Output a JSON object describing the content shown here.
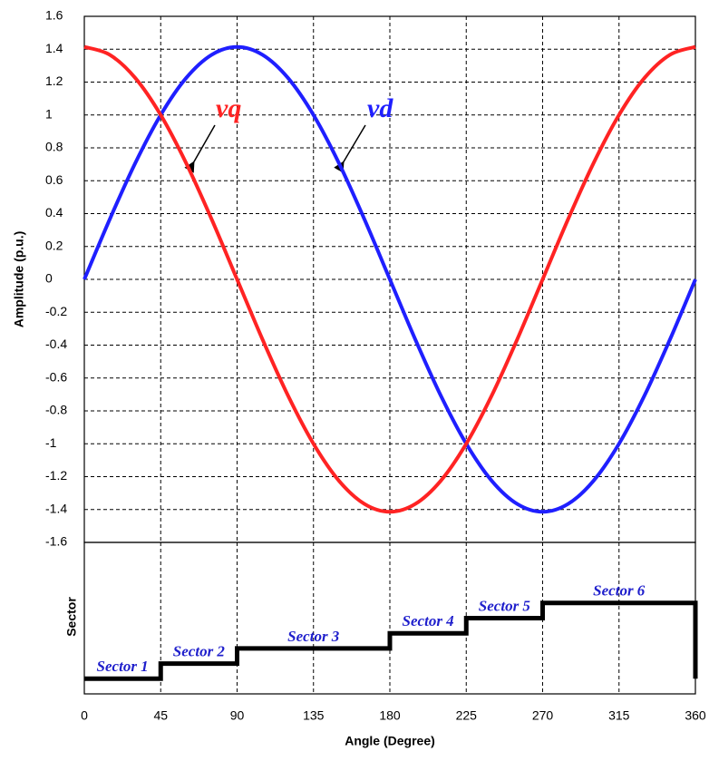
{
  "chart_data": [
    {
      "type": "line",
      "ylabel": "Amplitude (p.u.)",
      "x": [
        0,
        15,
        30,
        45,
        60,
        75,
        90,
        105,
        120,
        135,
        150,
        165,
        180,
        195,
        210,
        225,
        240,
        255,
        270,
        285,
        300,
        315,
        330,
        345,
        360
      ],
      "series": [
        {
          "name": "vd",
          "color": "#1f1fff",
          "values": [
            0,
            0.366,
            0.707,
            1.0,
            1.225,
            1.366,
            1.414,
            1.366,
            1.225,
            1.0,
            0.707,
            0.366,
            0,
            -0.366,
            -0.707,
            -1.0,
            -1.225,
            -1.366,
            -1.414,
            -1.366,
            -1.225,
            -1.0,
            -0.707,
            -0.366,
            0
          ]
        },
        {
          "name": "vq",
          "color": "#ff2323",
          "values": [
            1.414,
            1.366,
            1.225,
            1.0,
            0.707,
            0.366,
            0,
            -0.366,
            -0.707,
            -1.0,
            -1.225,
            -1.366,
            -1.414,
            -1.366,
            -1.225,
            -1.0,
            -0.707,
            -0.366,
            0,
            0.366,
            0.707,
            1.0,
            1.225,
            1.366,
            1.414
          ]
        }
      ],
      "xlim": [
        0,
        360
      ],
      "xticks": [
        0,
        45,
        90,
        135,
        180,
        225,
        270,
        315,
        360
      ],
      "ylim": [
        -1.6,
        1.6
      ],
      "yticks": [
        -1.6,
        -1.4,
        -1.2,
        -1,
        -0.8,
        -0.6,
        -0.4,
        -0.2,
        0,
        0.2,
        0.4,
        0.6,
        0.8,
        1,
        1.2,
        1.4,
        1.6
      ],
      "grid": "both"
    },
    {
      "type": "step",
      "xlabel": "Angle (Degree)",
      "ylabel": "Sector",
      "x": [
        0,
        45,
        45,
        90,
        90,
        180,
        180,
        225,
        225,
        270,
        270,
        360,
        360
      ],
      "series": [
        {
          "color": "#000000",
          "values": [
            1,
            1,
            2,
            2,
            3,
            3,
            4,
            4,
            5,
            5,
            6,
            6,
            1
          ]
        }
      ],
      "annotations": [
        "Sector 1",
        "Sector 2",
        "Sector 3",
        "Sector 4",
        "Sector 5",
        "Sector 6"
      ],
      "xlim": [
        0,
        360
      ],
      "xticks": [
        0,
        45,
        90,
        135,
        180,
        225,
        270,
        315,
        360
      ],
      "ylim": [
        0,
        10
      ],
      "grid": "x"
    }
  ]
}
